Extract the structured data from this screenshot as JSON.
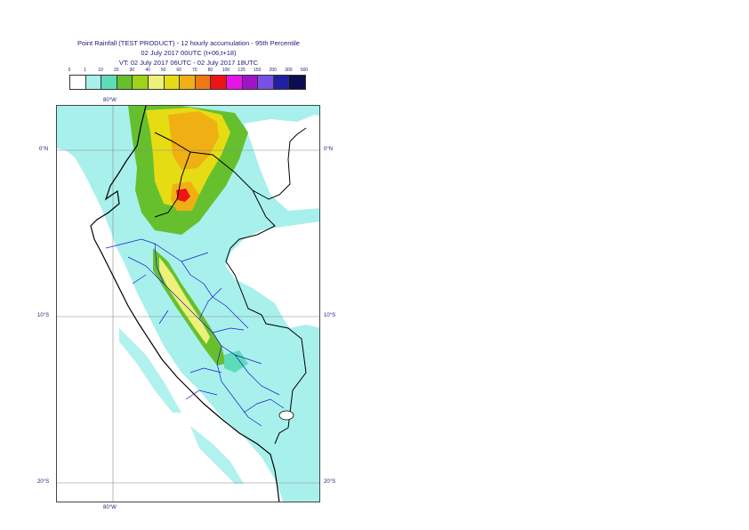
{
  "title": {
    "line1": "Point Rainfall (TEST PRODUCT) - 12 hourly accumulation - 95th Percentile",
    "line2": "02 July 2017 00UTC (t+06,t+18)",
    "line3": "VT: 02 July 2017 06UTC - 02 July 2017 18UTC"
  },
  "legend": {
    "ticks": [
      "0",
      "1",
      "10",
      "20",
      "30",
      "40",
      "50",
      "60",
      "70",
      "80",
      "100",
      "125",
      "150",
      "200",
      "300",
      "500"
    ],
    "colors": [
      "#ffffff",
      "#a8f0ec",
      "#5edcb8",
      "#66c02e",
      "#9fd21a",
      "#eef07a",
      "#e6dc14",
      "#f0b014",
      "#f07814",
      "#ee1414",
      "#e614e6",
      "#a014c8",
      "#7850e6",
      "#2020a0",
      "#0c0c50"
    ]
  },
  "map": {
    "region": "Peru",
    "background_land": "#a8f0ec",
    "background_sea": "#ffffff",
    "lon_labels": {
      "top": "80°W",
      "bottom": "80°W"
    },
    "lat_labels": [
      {
        "left": "0°N",
        "right": "0°N"
      },
      {
        "left": "10°S",
        "right": "10°S"
      },
      {
        "left": "20°S",
        "right": "20°S"
      }
    ]
  }
}
